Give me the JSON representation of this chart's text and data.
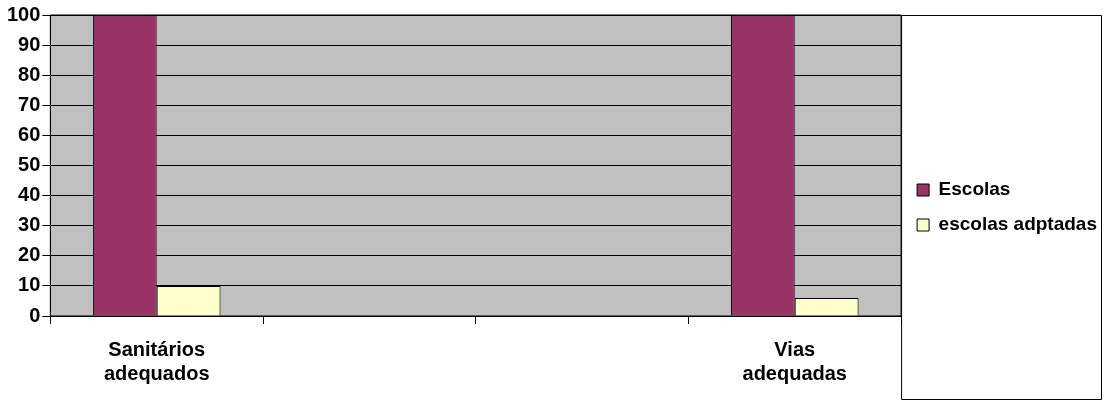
{
  "chart_data": {
    "type": "bar",
    "categories": [
      "Sanitários adequados",
      null,
      null,
      "Vias adequadas"
    ],
    "series": [
      {
        "name": "Escolas",
        "color": "#993366",
        "values": [
          100,
          null,
          null,
          100
        ]
      },
      {
        "name": "escolas adptadas",
        "color": "#ffffcc",
        "values": [
          10,
          null,
          null,
          6
        ]
      }
    ],
    "ylim": [
      0,
      100
    ],
    "yticks": [
      0,
      10,
      20,
      30,
      40,
      50,
      60,
      70,
      80,
      90,
      100
    ],
    "grid": "y",
    "legend": "right"
  }
}
